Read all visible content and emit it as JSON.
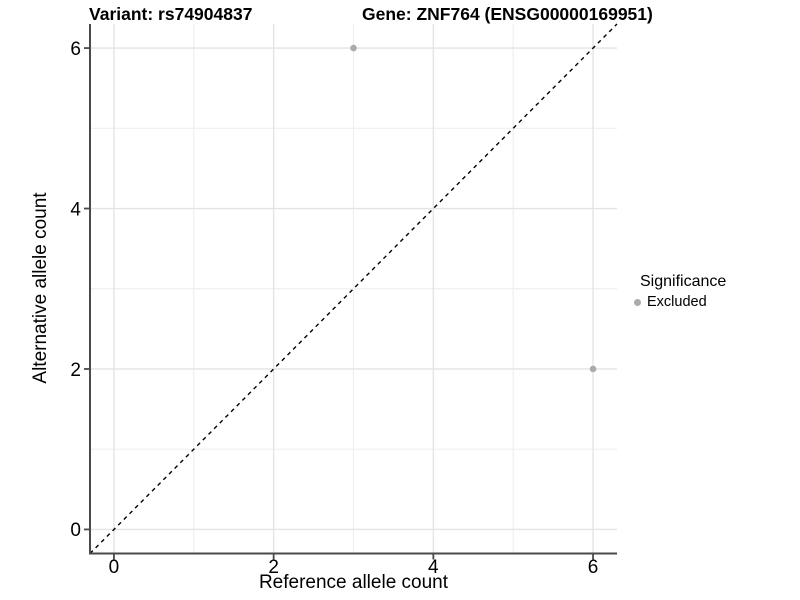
{
  "figure_title": {
    "left": "Variant: rs74904837",
    "right": "Gene: ZNF764 (ENSG00000169951)"
  },
  "chart_data": {
    "type": "scatter",
    "title": "Variant: rs74904837    Gene: ZNF764 (ENSG00000169951)",
    "xlabel": "Reference allele count",
    "ylabel": "Alternative allele count",
    "xlim": [
      -0.3,
      6.3
    ],
    "ylim": [
      -0.3,
      6.3
    ],
    "x_major_ticks": [
      0,
      2,
      4,
      6
    ],
    "y_major_ticks": [
      0,
      2,
      4,
      6
    ],
    "x_minor_ticks": [
      1,
      3,
      5
    ],
    "y_minor_ticks": [
      1,
      3,
      5
    ],
    "grid": "major and minor gridlines on white background",
    "reference_line": {
      "type": "identity y=x diagonal",
      "style": "dashed",
      "color": "#000000"
    },
    "series": [
      {
        "name": "Excluded",
        "marker": "circle",
        "color": "#ababab",
        "points": [
          [
            3,
            6
          ],
          [
            6,
            2
          ]
        ]
      }
    ],
    "legend": {
      "title": "Significance",
      "position": "right-middle",
      "entries": [
        {
          "label": "Excluded",
          "color": "#ababab"
        }
      ]
    }
  },
  "colors": {
    "background": "#ffffff",
    "grid_major": "#e4e4e4",
    "grid_minor": "#efefef",
    "axis_line": "#4a4a4a",
    "tick_mark": "#4a4a4a",
    "tick_label": "#000000",
    "point": "#ababab",
    "dashed_line": "#000000"
  }
}
